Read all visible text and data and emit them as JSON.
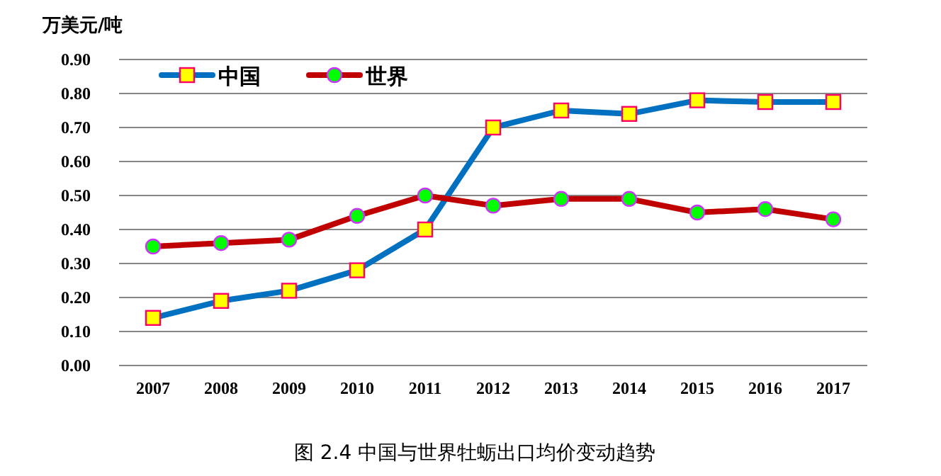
{
  "chart_data": {
    "type": "line",
    "title": "图 2.4    中国与世界牡蛎出口均价变动趋势",
    "ylabel": "万美元/吨",
    "categories": [
      "2007",
      "2008",
      "2009",
      "2010",
      "2011",
      "2012",
      "2013",
      "2014",
      "2015",
      "2016",
      "2017"
    ],
    "series": [
      {
        "name": "中国",
        "color": "#0070c0",
        "marker": "square",
        "values": [
          0.14,
          0.19,
          0.22,
          0.28,
          0.4,
          0.7,
          0.75,
          0.74,
          0.78,
          0.775,
          0.775
        ]
      },
      {
        "name": "世界",
        "color": "#c00000",
        "marker": "circle",
        "values": [
          0.35,
          0.36,
          0.37,
          0.44,
          0.5,
          0.47,
          0.49,
          0.49,
          0.45,
          0.46,
          0.43
        ]
      }
    ],
    "ylim": [
      0,
      0.9
    ],
    "yticks": [
      {
        "value": 0,
        "label": "0.00"
      },
      {
        "value": 0.1,
        "label": "0.10"
      },
      {
        "value": 0.2,
        "label": "0.20"
      },
      {
        "value": 0.3,
        "label": "0.30"
      },
      {
        "value": 0.4,
        "label": "0.40"
      },
      {
        "value": 0.5,
        "label": "0.50"
      },
      {
        "value": 0.6,
        "label": "0.60"
      },
      {
        "value": 0.7,
        "label": "0.70"
      },
      {
        "value": 0.8,
        "label": "0.80"
      },
      {
        "value": 0.9,
        "label": "0.90"
      }
    ],
    "grid": "y",
    "legend": "top left"
  }
}
